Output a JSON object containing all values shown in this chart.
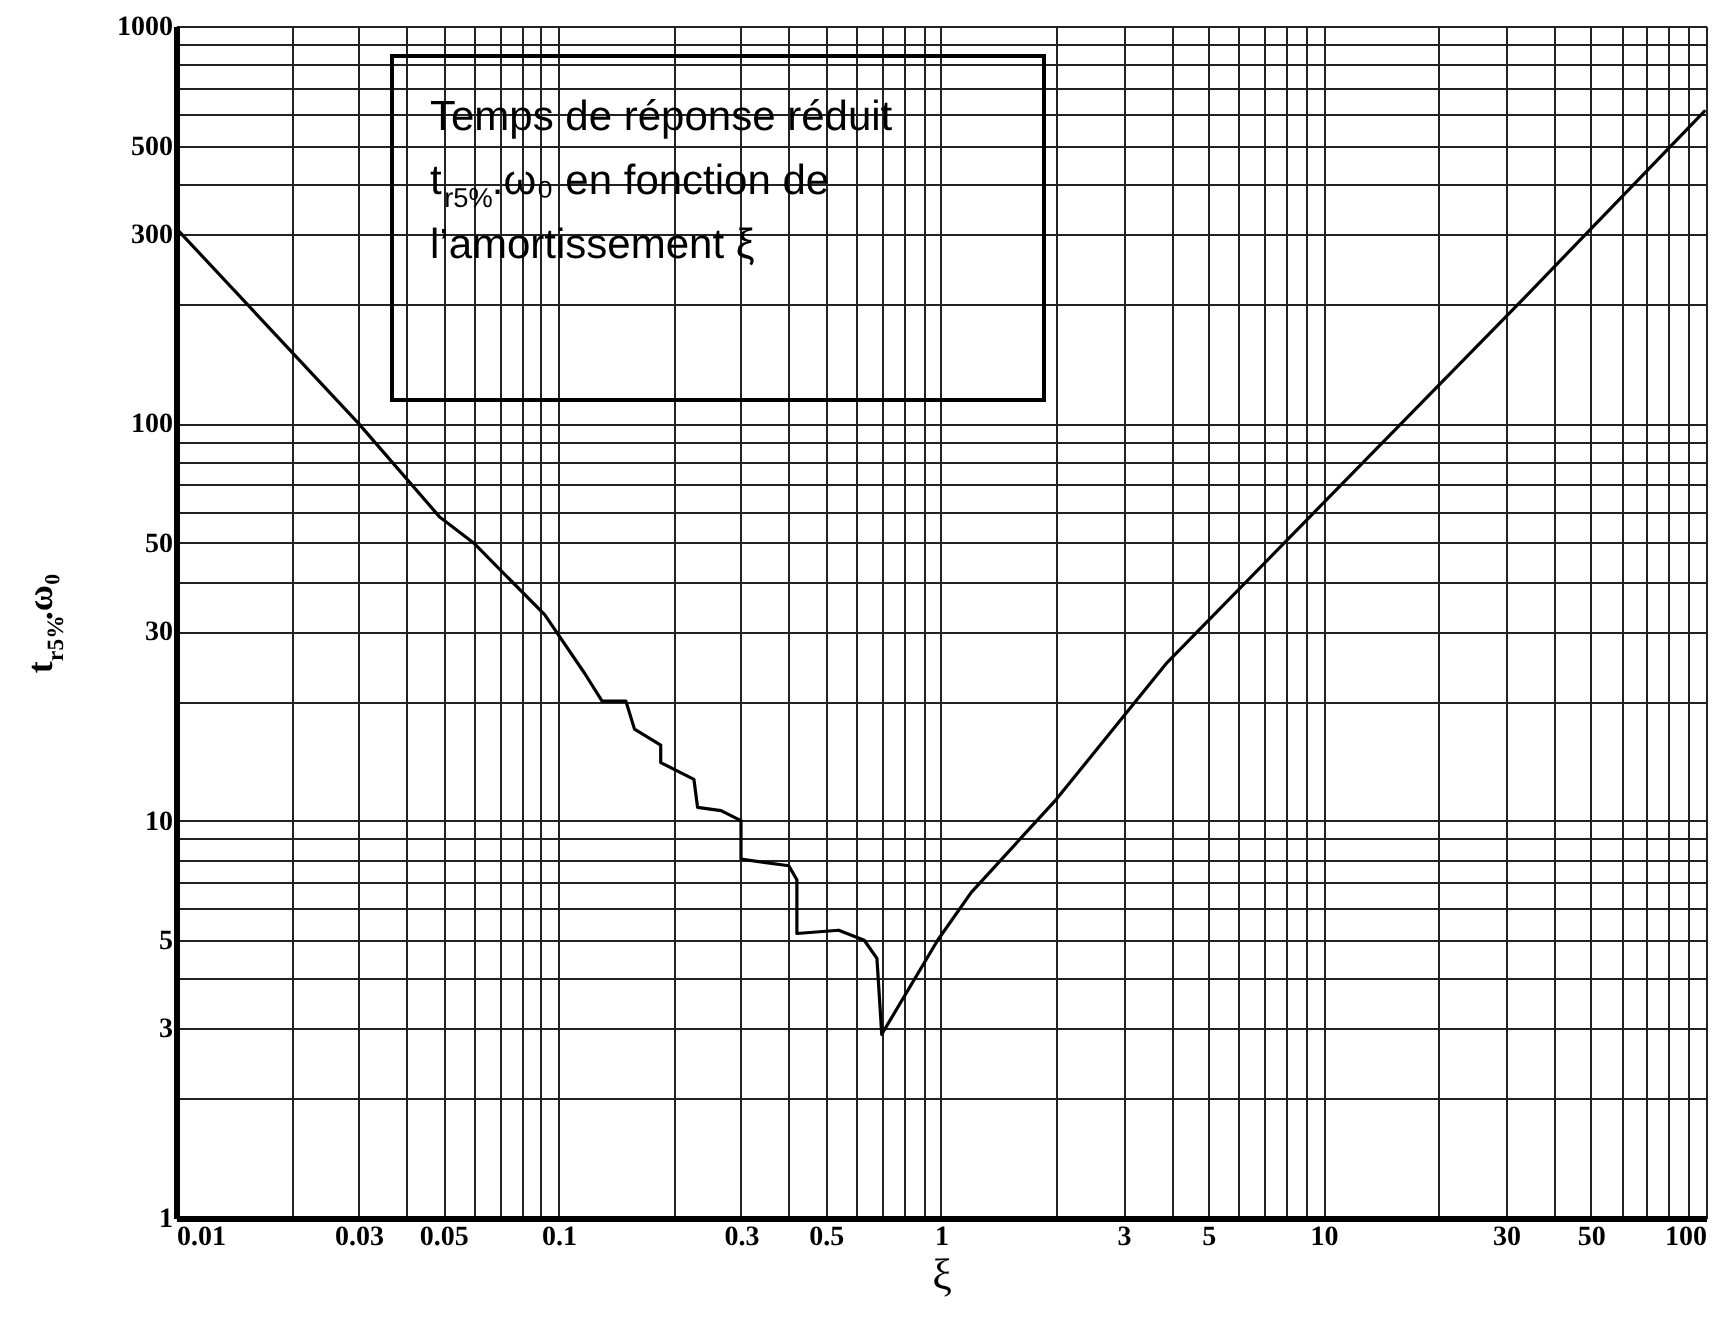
{
  "chart_data": {
    "type": "line",
    "xlabel": "ξ",
    "ylabel": "t$_{r5%}$.ω₀",
    "annotations": [
      "Temps de réponse réduit t$_{r5%}$.ω₀ en fonction de l’amortissement  ξ"
    ],
    "log": "xy",
    "grid": true,
    "marker": "none",
    "line_style": "solid",
    "xlim": [
      0.01,
      100
    ],
    "ylim": [
      1,
      1000
    ],
    "xticks": [
      0.01,
      {
        "value": 0.02,
        "label": null
      },
      0.03,
      {
        "value": 0.04,
        "label": null
      },
      0.05,
      {
        "value": 0.06,
        "label": null
      },
      {
        "value": 0.07,
        "label": null
      },
      {
        "value": 0.08,
        "label": null
      },
      {
        "value": 0.09,
        "label": null
      },
      0.1,
      {
        "value": 0.2,
        "label": null
      },
      0.3,
      {
        "value": 0.4,
        "label": null
      },
      0.5,
      {
        "value": 0.6,
        "label": null
      },
      {
        "value": 0.7,
        "label": null
      },
      {
        "value": 0.8,
        "label": null
      },
      {
        "value": 0.9,
        "label": null
      },
      1,
      {
        "value": 2,
        "label": null
      },
      3,
      {
        "value": 4,
        "label": null
      },
      5,
      {
        "value": 6,
        "label": null
      },
      {
        "value": 7,
        "label": null
      },
      {
        "value": 8,
        "label": null
      },
      {
        "value": 9,
        "label": null
      },
      10,
      {
        "value": 20,
        "label": null
      },
      30,
      {
        "value": 40,
        "label": null
      },
      50,
      {
        "value": 60,
        "label": null
      },
      {
        "value": 70,
        "label": null
      },
      {
        "value": 80,
        "label": null
      },
      {
        "value": 90,
        "label": null
      },
      100
    ],
    "yticks": [
      1,
      {
        "value": 2,
        "label": null
      },
      3,
      {
        "value": 4,
        "label": null
      },
      5,
      {
        "value": 6,
        "label": null
      },
      {
        "value": 7,
        "label": null
      },
      {
        "value": 8,
        "label": null
      },
      {
        "value": 9,
        "label": null
      },
      10,
      {
        "value": 20,
        "label": null
      },
      30,
      {
        "value": 40,
        "label": null
      },
      50,
      {
        "value": 60,
        "label": null
      },
      {
        "value": 70,
        "label": null
      },
      {
        "value": 80,
        "label": null
      },
      {
        "value": 90,
        "label": null
      },
      100,
      {
        "value": 200,
        "label": null
      },
      300,
      {
        "value": 400,
        "label": null
      },
      500,
      {
        "value": 600,
        "label": null
      },
      {
        "value": 700,
        "label": null
      },
      {
        "value": 800,
        "label": null
      },
      {
        "value": 900,
        "label": null
      },
      1000
    ],
    "series": [
      {
        "color": "#000000",
        "x": [
          0.01,
          0.03,
          0.049,
          0.06,
          0.092,
          0.117,
          0.13,
          0.15,
          0.158,
          0.185,
          0.185,
          0.226,
          0.231,
          0.266,
          0.3,
          0.3,
          0.4,
          0.42,
          0.42,
          0.54,
          0.63,
          0.68,
          0.7,
          0.98,
          1.2,
          2,
          3.9,
          34,
          99
        ],
        "values": [
          310,
          100,
          58,
          50,
          33,
          23.5,
          20,
          20,
          17,
          15.5,
          14,
          12.7,
          10.8,
          10.6,
          10,
          8,
          7.7,
          7.1,
          5.2,
          5.3,
          5,
          4.5,
          2.9,
          5,
          6.6,
          11.3,
          25,
          210,
          610
        ]
      }
    ]
  }
}
